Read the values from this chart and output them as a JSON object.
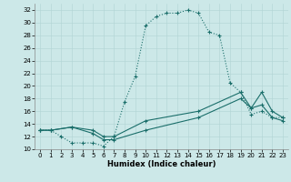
{
  "xlabel": "Humidex (Indice chaleur)",
  "bg_color": "#cce8e8",
  "line_color": "#1a6e6a",
  "xlim": [
    -0.5,
    23.5
  ],
  "ylim": [
    10,
    33
  ],
  "xticks": [
    0,
    1,
    2,
    3,
    4,
    5,
    6,
    7,
    8,
    9,
    10,
    11,
    12,
    13,
    14,
    15,
    16,
    17,
    18,
    19,
    20,
    21,
    22,
    23
  ],
  "yticks": [
    10,
    12,
    14,
    16,
    18,
    20,
    22,
    24,
    26,
    28,
    30,
    32
  ],
  "line1_x": [
    0,
    1,
    2,
    3,
    4,
    5,
    6,
    7,
    8,
    9,
    10,
    11,
    12,
    13,
    14,
    15,
    16,
    17,
    18,
    19,
    20,
    21,
    22,
    23
  ],
  "line1_y": [
    13,
    13,
    12,
    11,
    11,
    11,
    10.5,
    12,
    17.5,
    21.5,
    29.5,
    31,
    31.5,
    31.5,
    32,
    31.5,
    28.5,
    28,
    20.5,
    19,
    15.5,
    16,
    15,
    15
  ],
  "line2_x": [
    0,
    1,
    3,
    5,
    6,
    7,
    10,
    15,
    19,
    20,
    21,
    22,
    23
  ],
  "line2_y": [
    13,
    13,
    13.5,
    13,
    12,
    12,
    14.5,
    16,
    19,
    16.5,
    19,
    16,
    15
  ],
  "line3_x": [
    0,
    1,
    3,
    5,
    6,
    7,
    10,
    15,
    19,
    20,
    21,
    22,
    23
  ],
  "line3_y": [
    13,
    13,
    13.5,
    12.5,
    11.5,
    11.5,
    13,
    15,
    18,
    16.5,
    17,
    15,
    14.5
  ]
}
